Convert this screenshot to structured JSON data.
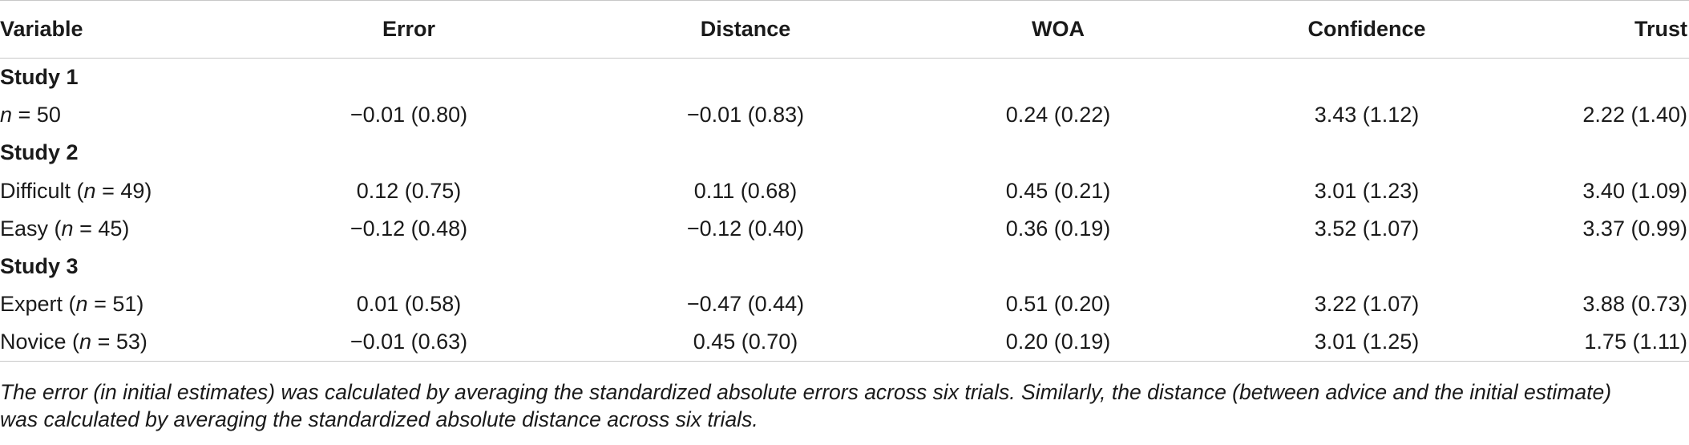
{
  "table": {
    "headers": [
      "Variable",
      "Error",
      "Distance",
      "WOA",
      "Confidence",
      "Trust"
    ],
    "groups": [
      {
        "title": "Study 1",
        "rows": [
          {
            "label_prefix": "",
            "label_n": "n = 50",
            "label_suffix": "",
            "values": [
              "−0.01 (0.80)",
              "−0.01 (0.83)",
              "0.24 (0.22)",
              "3.43 (1.12)",
              "2.22 (1.40)"
            ]
          }
        ]
      },
      {
        "title": "Study 2",
        "rows": [
          {
            "label_prefix": "Difficult (",
            "label_n": "n = 49",
            "label_suffix": ")",
            "values": [
              "0.12 (0.75)",
              "0.11 (0.68)",
              "0.45 (0.21)",
              "3.01 (1.23)",
              "3.40 (1.09)"
            ]
          },
          {
            "label_prefix": "Easy (",
            "label_n": "n = 45",
            "label_suffix": ")",
            "values": [
              "−0.12 (0.48)",
              "−0.12 (0.40)",
              "0.36 (0.19)",
              "3.52 (1.07)",
              "3.37 (0.99)"
            ]
          }
        ]
      },
      {
        "title": "Study 3",
        "rows": [
          {
            "label_prefix": "Expert (",
            "label_n": "n = 51",
            "label_suffix": ")",
            "values": [
              "0.01 (0.58)",
              "−0.47 (0.44)",
              "0.51 (0.20)",
              "3.22 (1.07)",
              "3.88 (0.73)"
            ]
          },
          {
            "label_prefix": "Novice (",
            "label_n": "n = 53",
            "label_suffix": ")",
            "values": [
              "−0.01 (0.63)",
              "0.45 (0.70)",
              "0.20 (0.19)",
              "3.01 (1.25)",
              "1.75 (1.11)"
            ]
          }
        ]
      }
    ]
  },
  "note": {
    "line1": "The error (in initial estimates) was calculated by averaging the standardized absolute errors across six trials. Similarly, the distance (between advice and the initial estimate)",
    "line2": "was calculated by averaging the standardized absolute distance across six trials."
  }
}
